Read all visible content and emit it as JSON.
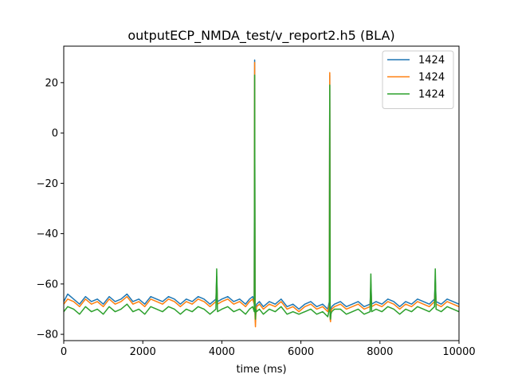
{
  "chart_data": {
    "type": "line",
    "title": "outputECP_NMDA_test/v_report2.h5 (BLA)",
    "xlabel": "time (ms)",
    "ylabel": "",
    "xlim": [
      0,
      10000
    ],
    "ylim": [
      -82.5,
      34.5
    ],
    "xticks": [
      0,
      2000,
      4000,
      6000,
      8000,
      10000
    ],
    "yticks": [
      -80,
      -60,
      -40,
      -20,
      0,
      20
    ],
    "xtick_labels": [
      "0",
      "2000",
      "4000",
      "6000",
      "8000",
      "10000"
    ],
    "ytick_labels": [
      "−80",
      "−60",
      "−40",
      "−20",
      "0",
      "20"
    ],
    "grid": false,
    "legend_position": "top-right",
    "series": [
      {
        "name": "1424",
        "color": "#1f77b4",
        "x": [
          0,
          100,
          250,
          400,
          550,
          700,
          850,
          1000,
          1150,
          1300,
          1450,
          1600,
          1750,
          1900,
          2050,
          2200,
          2350,
          2500,
          2650,
          2800,
          2950,
          3100,
          3250,
          3400,
          3550,
          3700,
          3850,
          3870,
          3890,
          4000,
          4150,
          4300,
          4450,
          4600,
          4700,
          4780,
          4820,
          4830,
          4840,
          4850,
          4860,
          4880,
          4950,
          5050,
          5200,
          5350,
          5500,
          5650,
          5800,
          5950,
          6100,
          6250,
          6400,
          6550,
          6680,
          6720,
          6730,
          6740,
          6750,
          6760,
          6780,
          6850,
          7000,
          7150,
          7300,
          7450,
          7600,
          7750,
          7770,
          7790,
          7900,
          8050,
          8200,
          8350,
          8500,
          8650,
          8800,
          8950,
          9100,
          9250,
          9380,
          9400,
          9420,
          9550,
          9700,
          9850,
          10000
        ],
        "y": [
          -67,
          -64,
          -66,
          -68,
          -65,
          -67,
          -66,
          -68,
          -65,
          -67,
          -66,
          -64,
          -67,
          -66,
          -68,
          -65,
          -66,
          -67,
          -65,
          -66,
          -68,
          -66,
          -67,
          -65,
          -66,
          -68,
          -66,
          -57,
          -67,
          -66,
          -65,
          -67,
          -66,
          -68,
          -66,
          -65,
          -67,
          29,
          -71,
          -75,
          -70,
          -68,
          -67,
          -69,
          -67,
          -68,
          -66,
          -69,
          -68,
          -70,
          -68,
          -67,
          -69,
          -68,
          -70,
          -67,
          23,
          -72,
          -73,
          -70,
          -69,
          -68,
          -67,
          -69,
          -68,
          -67,
          -69,
          -68,
          -60,
          -68,
          -67,
          -68,
          -66,
          -67,
          -69,
          -67,
          -68,
          -66,
          -67,
          -68,
          -66,
          -58,
          -67,
          -68,
          -66,
          -67,
          -68
        ]
      },
      {
        "name": "1424",
        "color": "#ff7f0e",
        "x": [
          0,
          100,
          250,
          400,
          550,
          700,
          850,
          1000,
          1150,
          1300,
          1450,
          1600,
          1750,
          1900,
          2050,
          2200,
          2350,
          2500,
          2650,
          2800,
          2950,
          3100,
          3250,
          3400,
          3550,
          3700,
          3850,
          3870,
          3890,
          4000,
          4150,
          4300,
          4450,
          4600,
          4700,
          4780,
          4820,
          4830,
          4840,
          4850,
          4860,
          4880,
          4950,
          5050,
          5200,
          5350,
          5500,
          5650,
          5800,
          5950,
          6100,
          6250,
          6400,
          6550,
          6680,
          6720,
          6730,
          6740,
          6750,
          6760,
          6780,
          6850,
          7000,
          7150,
          7300,
          7450,
          7600,
          7750,
          7770,
          7790,
          7900,
          8050,
          8200,
          8350,
          8500,
          8650,
          8800,
          8950,
          9100,
          9250,
          9380,
          9400,
          9420,
          9550,
          9700,
          9850,
          10000
        ],
        "y": [
          -68,
          -66,
          -67,
          -69,
          -66,
          -68,
          -67,
          -69,
          -66,
          -68,
          -67,
          -65,
          -68,
          -67,
          -69,
          -66,
          -67,
          -68,
          -66,
          -67,
          -69,
          -67,
          -68,
          -66,
          -67,
          -69,
          -67,
          -58,
          -68,
          -67,
          -66,
          -68,
          -67,
          -69,
          -67,
          -66,
          -68,
          28,
          -73,
          -77,
          -72,
          -69,
          -68,
          -70,
          -68,
          -69,
          -67,
          -70,
          -69,
          -71,
          -69,
          -68,
          -70,
          -69,
          -71,
          -68,
          24,
          -74,
          -75,
          -71,
          -70,
          -69,
          -68,
          -70,
          -69,
          -68,
          -70,
          -69,
          -61,
          -69,
          -68,
          -69,
          -67,
          -68,
          -70,
          -68,
          -69,
          -67,
          -68,
          -69,
          -67,
          -59,
          -68,
          -69,
          -67,
          -68,
          -69
        ]
      },
      {
        "name": "1424",
        "color": "#2ca02c",
        "x": [
          0,
          100,
          250,
          400,
          550,
          700,
          850,
          1000,
          1150,
          1300,
          1450,
          1600,
          1750,
          1900,
          2050,
          2200,
          2350,
          2500,
          2650,
          2800,
          2950,
          3100,
          3250,
          3400,
          3550,
          3700,
          3850,
          3870,
          3890,
          4000,
          4150,
          4300,
          4450,
          4600,
          4700,
          4780,
          4820,
          4830,
          4840,
          4850,
          4860,
          4880,
          4950,
          5050,
          5200,
          5350,
          5500,
          5650,
          5800,
          5950,
          6100,
          6250,
          6400,
          6550,
          6680,
          6720,
          6730,
          6740,
          6750,
          6760,
          6780,
          6850,
          7000,
          7150,
          7300,
          7450,
          7600,
          7750,
          7770,
          7790,
          7900,
          8050,
          8200,
          8350,
          8500,
          8650,
          8800,
          8950,
          9100,
          9250,
          9380,
          9400,
          9420,
          9550,
          9700,
          9850,
          10000
        ],
        "y": [
          -71,
          -69,
          -70,
          -72,
          -69,
          -71,
          -70,
          -72,
          -69,
          -71,
          -70,
          -68,
          -71,
          -70,
          -72,
          -69,
          -70,
          -71,
          -69,
          -70,
          -72,
          -70,
          -71,
          -69,
          -70,
          -72,
          -70,
          -54,
          -71,
          -70,
          -69,
          -71,
          -70,
          -72,
          -70,
          -69,
          -71,
          23,
          -70,
          -74,
          -70,
          -71,
          -70,
          -72,
          -70,
          -71,
          -69,
          -72,
          -71,
          -72,
          -71,
          -70,
          -72,
          -71,
          -73,
          -70,
          19,
          -73,
          -74,
          -72,
          -71,
          -70,
          -70,
          -72,
          -71,
          -70,
          -72,
          -71,
          -56,
          -71,
          -70,
          -71,
          -69,
          -70,
          -72,
          -70,
          -71,
          -69,
          -70,
          -71,
          -69,
          -54,
          -70,
          -71,
          -69,
          -70,
          -71
        ]
      }
    ]
  }
}
